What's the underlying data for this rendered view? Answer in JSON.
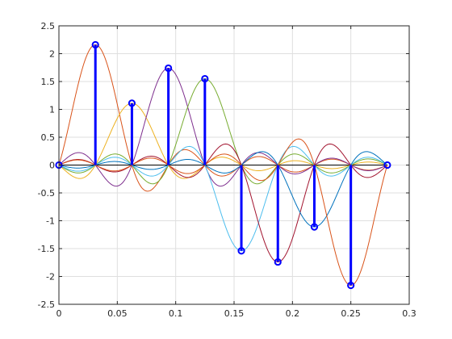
{
  "chart_data": {
    "type": "line",
    "title": "",
    "xlabel": "",
    "ylabel": "",
    "xlim": [
      0,
      0.3
    ],
    "ylim": [
      -2.5,
      2.5
    ],
    "grid": true,
    "xticks": [
      0,
      0.05,
      0.1,
      0.15,
      0.2,
      0.25,
      0.3
    ],
    "xtick_labels": [
      "0",
      "0.05",
      "0.1",
      "0.15",
      "0.2",
      "0.25",
      "0.3"
    ],
    "yticks": [
      -2.5,
      -2,
      -1.5,
      -1,
      -0.5,
      0,
      0.5,
      1,
      1.5,
      2,
      2.5
    ],
    "ytick_labels": [
      "-2.5",
      "-2",
      "-1.5",
      "-1",
      "-0.5",
      "0",
      "0.5",
      "1",
      "1.5",
      "2",
      "2.5"
    ],
    "sample_spacing": 0.03125,
    "stem_series": {
      "x": [
        0,
        0.03125,
        0.0625,
        0.09375,
        0.125,
        0.15625,
        0.1875,
        0.21875,
        0.25,
        0.28125
      ],
      "y": [
        0,
        2.16,
        1.11,
        1.74,
        1.55,
        -1.54,
        -1.74,
        -1.11,
        -2.16,
        0
      ],
      "color": "#0000ff"
    },
    "sinc_series_colors": [
      "#0072bd",
      "#d95319",
      "#edb120",
      "#7e2f8e",
      "#77ac30",
      "#4dbeee",
      "#a2142f",
      "#0072bd",
      "#d95319",
      "#edb120"
    ]
  }
}
